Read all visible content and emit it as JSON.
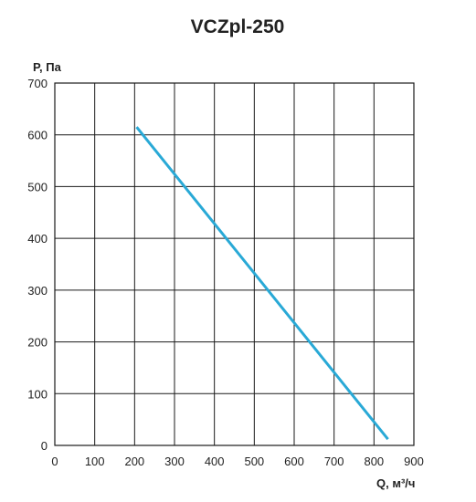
{
  "chart_data": {
    "type": "line",
    "title": "VCZpl-250",
    "xlabel": "Q, м³/ч",
    "ylabel": "P, Па",
    "xlim": [
      0,
      900
    ],
    "ylim": [
      0,
      700
    ],
    "x_ticks": [
      0,
      100,
      200,
      300,
      400,
      500,
      600,
      700,
      800,
      900
    ],
    "y_ticks": [
      0,
      100,
      200,
      300,
      400,
      500,
      600,
      700
    ],
    "grid": true,
    "series": [
      {
        "color": "#29a9d6",
        "points": [
          [
            205,
            615
          ],
          [
            835,
            12
          ]
        ]
      }
    ]
  }
}
